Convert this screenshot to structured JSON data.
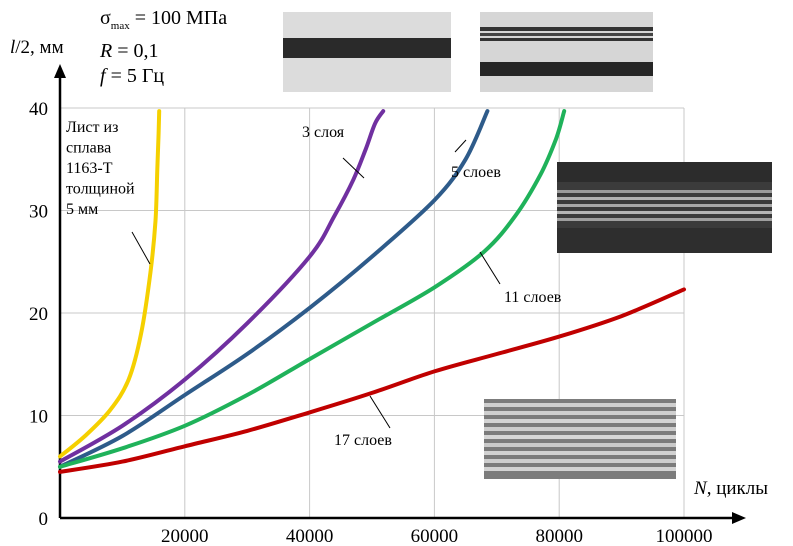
{
  "parameters": {
    "sigma_symbol": "σ",
    "sigma_sub": "max",
    "sigma_value": " = 100 МПа",
    "r_symbol": "R",
    "r_value": " = 0,1",
    "f_symbol": "f",
    "f_value": " = 5 Гц"
  },
  "colors": {
    "yellow": "#f5d000",
    "purple": "#7030a0",
    "blue": "#2e5b8a",
    "green": "#1fb25a",
    "red": "#c00000",
    "grid": "#c8c8c8",
    "axis": "#000000"
  },
  "chart_data": {
    "type": "line",
    "ylabel_symbol": "l",
    "ylabel_rest": "/2, мм",
    "xlabel_symbol": "N",
    "xlabel_rest": ", циклы",
    "xlim": [
      0,
      100000
    ],
    "ylim": [
      0,
      40
    ],
    "x_ticks": [
      20000,
      40000,
      60000,
      80000,
      100000
    ],
    "x_tick_labels": [
      "20000",
      "40000",
      "60000",
      "80000",
      "100000"
    ],
    "y_ticks": [
      0,
      10,
      20,
      30,
      40
    ],
    "y_tick_labels": [
      "0",
      "10",
      "20",
      "30",
      "40"
    ],
    "grid": true,
    "series": [
      {
        "name": "Лист из сплава 1163-Т толщиной 5 мм",
        "color_key": "yellow",
        "x": [
          0,
          4000,
          8000,
          11000,
          13000,
          14500,
          15300,
          15600,
          15800,
          15900
        ],
        "y": [
          6,
          8,
          10.5,
          13.5,
          18,
          24,
          29,
          34,
          37.5,
          39.7
        ]
      },
      {
        "name": "3 слоя",
        "color_key": "purple",
        "x": [
          0,
          10000,
          20000,
          30000,
          40000,
          44000,
          47000,
          49000,
          50500,
          51800
        ],
        "y": [
          5.5,
          9,
          13.5,
          19,
          25.5,
          29.5,
          33,
          36,
          38.5,
          39.7
        ]
      },
      {
        "name": "5 слоев",
        "color_key": "blue",
        "x": [
          0,
          10000,
          20000,
          30000,
          40000,
          50000,
          60000,
          65000,
          68500
        ],
        "y": [
          5,
          8,
          12,
          16,
          20.5,
          25.5,
          31,
          35,
          39.7
        ]
      },
      {
        "name": "11 слоев",
        "color_key": "green",
        "x": [
          0,
          10000,
          20000,
          30000,
          40000,
          50000,
          60000,
          68000,
          73000,
          77000,
          79500,
          80800
        ],
        "y": [
          5,
          6.8,
          9,
          12,
          15.5,
          19,
          22.5,
          26,
          29.5,
          33.5,
          37,
          39.7
        ]
      },
      {
        "name": "17 слоев",
        "color_key": "red",
        "x": [
          0,
          10000,
          20000,
          30000,
          40000,
          50000,
          60000,
          70000,
          80000,
          90000,
          100000
        ],
        "y": [
          4.5,
          5.5,
          7,
          8.5,
          10.3,
          12.2,
          14.3,
          16,
          17.7,
          19.7,
          22.3
        ]
      }
    ],
    "annotations": {
      "yellow_lines": [
        "Лист из",
        "сплава",
        "1163-Т",
        "толщиной",
        "5 мм"
      ],
      "purple": "3 слоя",
      "blue": "5 слоев",
      "green": "11 слоев",
      "red": "17 слоев"
    }
  },
  "photos": [
    {
      "name": "photo-top-left",
      "kind": "stripes-bw"
    },
    {
      "name": "photo-top-right",
      "kind": "stripes-bw2"
    },
    {
      "name": "photo-right-middle",
      "kind": "micro-dark"
    },
    {
      "name": "photo-right-bottom",
      "kind": "micro-many"
    }
  ]
}
